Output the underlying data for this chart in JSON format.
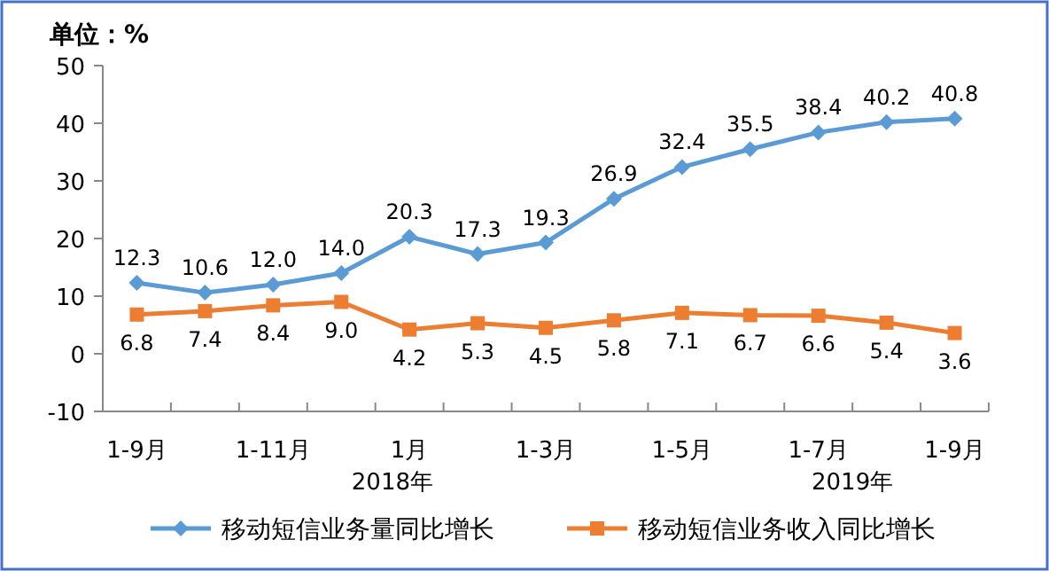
{
  "chart_data": {
    "type": "line",
    "ylabel": "单位：%",
    "categories": [
      "1-9月",
      null,
      "1-11月",
      null,
      "1月",
      null,
      "1-3月",
      null,
      "1-5月",
      null,
      "1-7月",
      null,
      "1-9月"
    ],
    "series": [
      {
        "name": "移动短信业务量同比增长",
        "color": "#5b9bd5",
        "marker": "diamond",
        "values": [
          12.3,
          10.6,
          12.0,
          14.0,
          20.3,
          17.3,
          19.3,
          26.9,
          32.4,
          35.5,
          38.4,
          40.2,
          40.8
        ],
        "value_labels": [
          "12.3",
          "10.6",
          "12.0",
          "14.0",
          "20.3",
          "17.3",
          "19.3",
          "26.9",
          "32.4",
          "35.5",
          "38.4",
          "40.2",
          "40.8"
        ]
      },
      {
        "name": "移动短信业务收入同比增长",
        "color": "#ed7d31",
        "marker": "square",
        "values": [
          6.8,
          7.4,
          8.4,
          9.0,
          4.2,
          5.3,
          4.5,
          5.8,
          7.1,
          6.7,
          6.6,
          5.4,
          3.6
        ],
        "value_labels": [
          "6.8",
          "7.4",
          "8.4",
          "9.0",
          "4.2",
          "5.3",
          "4.5",
          "5.8",
          "7.1",
          "6.7",
          "6.6",
          "5.4",
          "3.6"
        ]
      }
    ],
    "ylim": [
      -10,
      50
    ],
    "yticks": [
      -10,
      0,
      10,
      20,
      30,
      40,
      50
    ],
    "legend": "bottom",
    "grid": false,
    "annotations": [
      "2018年",
      "2019年"
    ]
  }
}
